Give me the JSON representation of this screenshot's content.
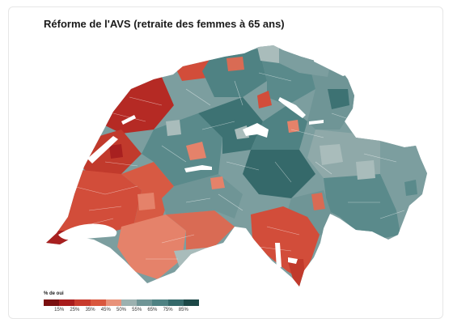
{
  "title": "Réforme de l'AVS (retraite des femmes à 65 ans)",
  "legend": {
    "title": "% de oui",
    "colors": [
      "#7a1010",
      "#a81c1c",
      "#c73a2c",
      "#d9573e",
      "#e8927a",
      "#9cb1b0",
      "#6f9596",
      "#4f8283",
      "#35696a",
      "#1c4847"
    ],
    "ticks": [
      "15%",
      "25%",
      "35%",
      "45%",
      "50%",
      "55%",
      "65%",
      "75%",
      "85%"
    ]
  },
  "map": {
    "region": "Suisse",
    "colors": {
      "no_strong": "#b52a24",
      "no_medium": "#d24d3a",
      "no_light": "#e5826a",
      "neutral": "#a9bcbb",
      "yes_light": "#7c9e9f",
      "yes_medium": "#5a8a8b",
      "yes_strong": "#3d7273",
      "lake": "#ffffff",
      "border": "#ffffff"
    }
  }
}
